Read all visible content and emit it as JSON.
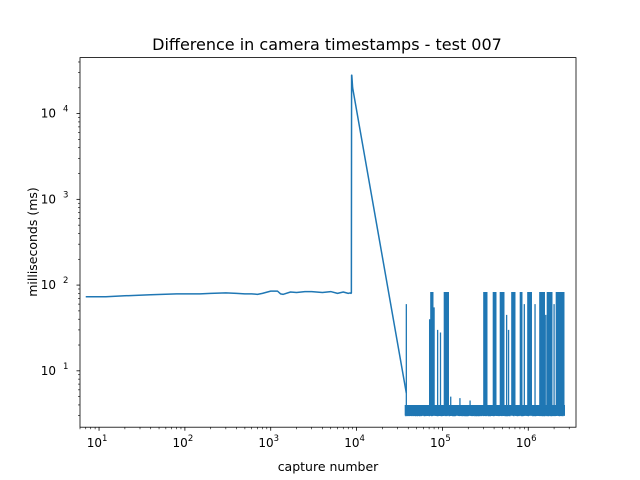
{
  "chart_data": {
    "type": "line",
    "title": "Difference in camera timestamps - test 007",
    "xlabel": "capture number",
    "ylabel": "milliseconds (ms)",
    "xscale": "log",
    "yscale": "log",
    "xlim": [
      6,
      3600000
    ],
    "ylim": [
      2.2,
      45000
    ],
    "grid": false,
    "xticks": [
      {
        "base": "10",
        "exp": "1",
        "value": 10
      },
      {
        "base": "10",
        "exp": "2",
        "value": 100
      },
      {
        "base": "10",
        "exp": "3",
        "value": 1000
      },
      {
        "base": "10",
        "exp": "4",
        "value": 10000
      },
      {
        "base": "10",
        "exp": "5",
        "value": 100000
      },
      {
        "base": "10",
        "exp": "6",
        "value": 1000000
      }
    ],
    "yticks": [
      {
        "base": "10",
        "exp": "1",
        "value": 10
      },
      {
        "base": "10",
        "exp": "2",
        "value": 100
      },
      {
        "base": "10",
        "exp": "3",
        "value": 1000
      },
      {
        "base": "10",
        "exp": "4",
        "value": 10000
      }
    ],
    "series": [
      {
        "color": "#1f77b4",
        "x": [
          7,
          12,
          20,
          40,
          80,
          100,
          150,
          200,
          300,
          400,
          500,
          600,
          700,
          800,
          1000,
          1200,
          1300,
          1400,
          1700,
          2000,
          2500,
          3000,
          4000,
          5000,
          6000,
          7000,
          8000,
          8400,
          8600,
          8700,
          8750,
          8800,
          9000,
          38000
        ],
        "y": [
          73,
          73,
          75,
          77,
          79,
          79,
          79,
          80,
          81,
          80,
          79,
          79,
          78,
          80,
          85,
          85,
          79,
          78,
          83,
          82,
          84,
          84,
          82,
          84,
          80,
          83,
          80,
          81,
          80,
          81,
          28000,
          28000,
          20000,
          5.5
        ]
      }
    ],
    "noise_band": {
      "x_start": 37000,
      "x_end": 2650000,
      "y_low": 3,
      "y_high": 83,
      "baseline": 3.5,
      "baseline_spread": [
        3,
        4
      ],
      "high_segments": [
        [
          73000,
          78000
        ],
        [
          105000,
          118000
        ],
        [
          300000,
          330000
        ],
        [
          390000,
          420000
        ],
        [
          470000,
          520000
        ],
        [
          640000,
          700000
        ],
        [
          800000,
          850000
        ],
        [
          980000,
          1100000
        ],
        [
          1350000,
          1550000
        ],
        [
          1650000,
          1900000
        ],
        [
          2100000,
          2600000
        ]
      ],
      "spikes": [
        [
          38000,
          60
        ],
        [
          71000,
          40
        ],
        [
          80000,
          55
        ],
        [
          88000,
          30
        ],
        [
          95000,
          28
        ],
        [
          125000,
          5
        ],
        [
          160000,
          4.8
        ],
        [
          210000,
          4.5
        ],
        [
          560000,
          45
        ],
        [
          590000,
          30
        ],
        [
          900000,
          60
        ],
        [
          1200000,
          60
        ],
        [
          1600000,
          45
        ],
        [
          2000000,
          60
        ],
        [
          2400000,
          25
        ]
      ]
    }
  }
}
